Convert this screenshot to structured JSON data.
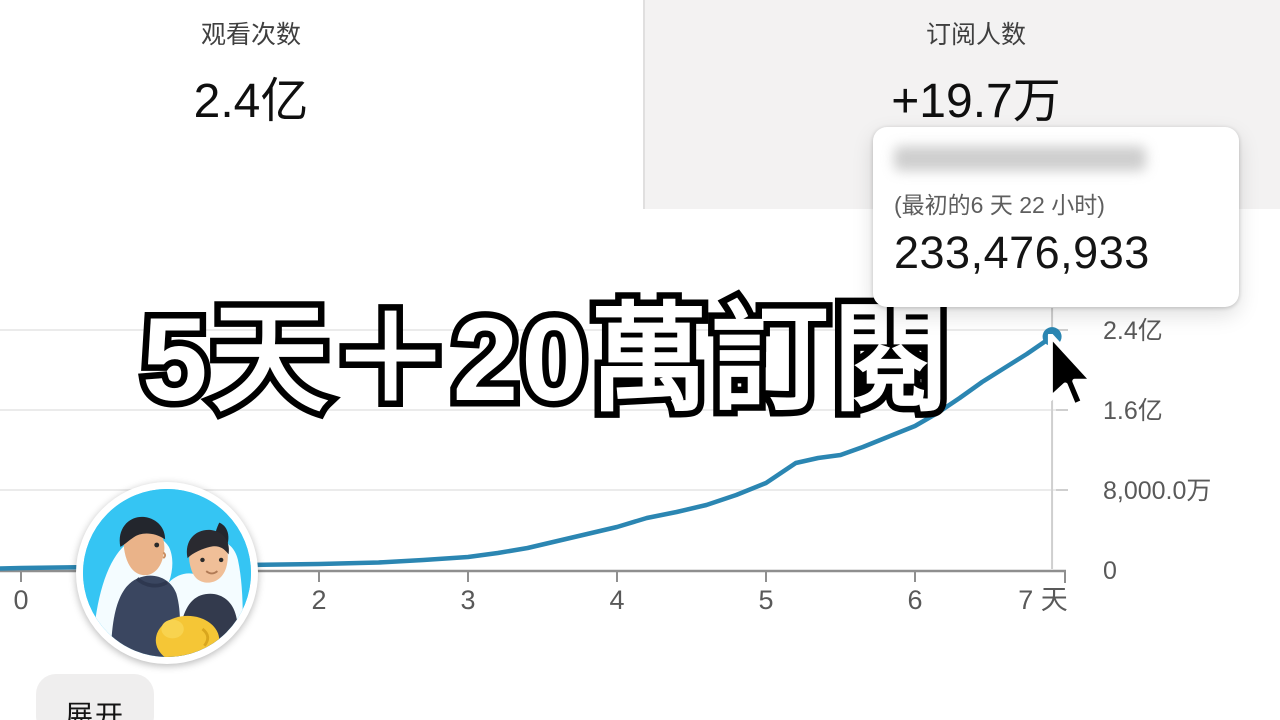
{
  "stats": {
    "views": {
      "label": "观看次数",
      "value": "2.4亿"
    },
    "subscribers": {
      "label": "订阅人数",
      "value": "+19.7万"
    }
  },
  "tooltip": {
    "subtitle": "(最初的6 天 22 小时)",
    "value": "233,476,933"
  },
  "overlay_title": "5天＋20萬訂閱",
  "expand_button": {
    "label": "展开"
  },
  "colors": {
    "line": "#2b86b2",
    "dot": "#2b86b2",
    "grid": "#ebebeb",
    "axis": "#8f8f8f",
    "hover_line": "#cfcfcf",
    "tick_label": "#595959",
    "panel_bg": "#f3f2f2",
    "avatar_bg": "#35c5f3"
  },
  "chart_data": {
    "type": "line",
    "title": "",
    "xlabel": "天",
    "ylabel": "",
    "x_range": [
      0,
      7
    ],
    "y_range_yi": [
      0,
      2.4
    ],
    "grid": true,
    "legend": false,
    "x_ticks": [
      {
        "day": 0,
        "label": "0"
      },
      {
        "day": 2,
        "label": "2"
      },
      {
        "day": 3,
        "label": "3"
      },
      {
        "day": 4,
        "label": "4"
      },
      {
        "day": 5,
        "label": "5"
      },
      {
        "day": 6,
        "label": "6"
      },
      {
        "day": 7,
        "label": "7 天",
        "label_dx": -21
      }
    ],
    "y_ticks": [
      {
        "value": 0,
        "label": "0"
      },
      {
        "value": 0.8,
        "label": "8,000.0万"
      },
      {
        "value": 1.6,
        "label": "1.6亿"
      },
      {
        "value": 2.4,
        "label": "2.4亿"
      }
    ],
    "series": [
      {
        "name": "观看次数",
        "points": [
          [
            -0.14,
            0.015
          ],
          [
            0,
            0.02
          ],
          [
            0.5,
            0.03
          ],
          [
            1,
            0.04
          ],
          [
            1.5,
            0.05
          ],
          [
            2,
            0.06
          ],
          [
            2.4,
            0.075
          ],
          [
            2.7,
            0.1
          ],
          [
            3,
            0.13
          ],
          [
            3.2,
            0.17
          ],
          [
            3.4,
            0.22
          ],
          [
            3.6,
            0.29
          ],
          [
            3.8,
            0.36
          ],
          [
            4,
            0.43
          ],
          [
            4.2,
            0.52
          ],
          [
            4.4,
            0.58
          ],
          [
            4.6,
            0.65
          ],
          [
            4.8,
            0.75
          ],
          [
            5,
            0.87
          ],
          [
            5.1,
            0.97
          ],
          [
            5.2,
            1.07
          ],
          [
            5.35,
            1.12
          ],
          [
            5.5,
            1.15
          ],
          [
            5.65,
            1.23
          ],
          [
            5.8,
            1.32
          ],
          [
            6,
            1.44
          ],
          [
            6.15,
            1.57
          ],
          [
            6.3,
            1.72
          ],
          [
            6.45,
            1.88
          ],
          [
            6.6,
            2.02
          ],
          [
            6.75,
            2.16
          ],
          [
            6.92,
            2.334
          ]
        ]
      }
    ],
    "hover_point": {
      "day": 6.92,
      "value_yi": 2.334,
      "value_label": "233,476,933"
    }
  }
}
